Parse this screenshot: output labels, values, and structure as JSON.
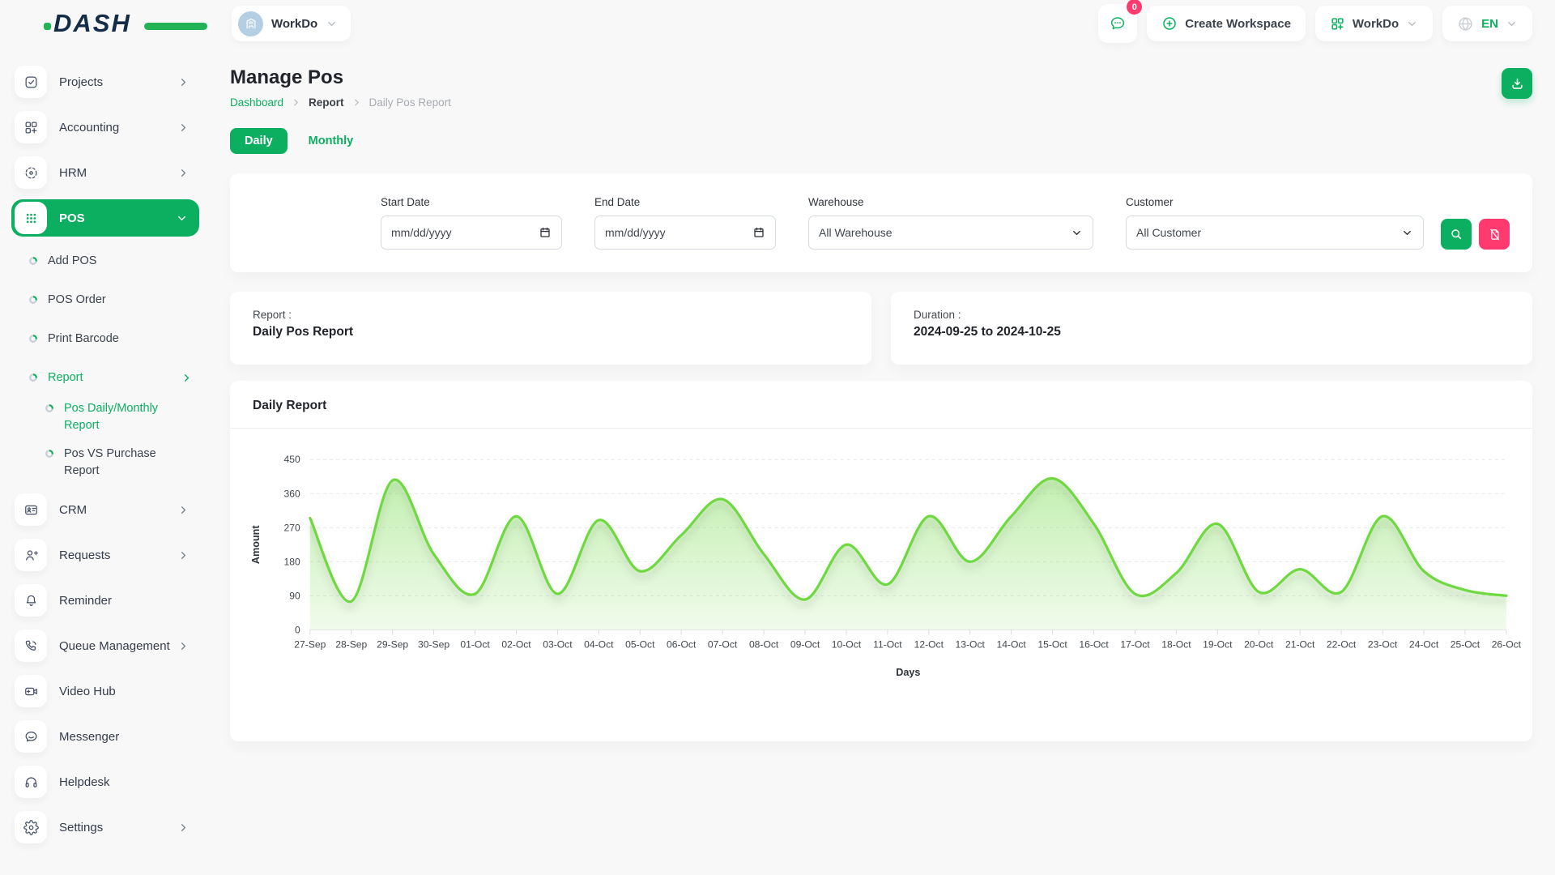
{
  "colors": {
    "primary": "#0caf60",
    "danger": "#ff3a6e",
    "chart_line": "#6fd943",
    "chart_fill": "#6fd943"
  },
  "header": {
    "logo": "DASH",
    "workspace_pill": "WorkDo",
    "workspace_avatar_icon": "building-icon",
    "chat_icon": "chat-bubble-icon",
    "chat_badge": "0",
    "create_workspace": "Create Workspace",
    "create_icon": "plus-circle-icon",
    "workspace_menu": "WorkDo",
    "workspace_menu_icon": "grid-plus-icon",
    "language": "EN",
    "language_icon": "globe-icon"
  },
  "sidebar": {
    "items": [
      {
        "label": "Projects",
        "icon": "checkbox-icon",
        "level": "top",
        "chevron": "right",
        "active": false
      },
      {
        "label": "Accounting",
        "icon": "grid-plus-icon",
        "level": "top",
        "chevron": "right",
        "active": false
      },
      {
        "label": "HRM",
        "icon": "target-dashed-icon",
        "level": "top",
        "chevron": "right",
        "active": false
      },
      {
        "label": "POS",
        "icon": "grid-dots-icon",
        "level": "top",
        "chevron": "down",
        "active": true
      },
      {
        "label": "Add POS",
        "icon": "donut-bullet-icon",
        "level": "sub",
        "chevron": null,
        "active": false
      },
      {
        "label": "POS Order",
        "icon": "donut-bullet-icon",
        "level": "sub",
        "chevron": null,
        "active": false
      },
      {
        "label": "Print Barcode",
        "icon": "donut-bullet-icon",
        "level": "sub",
        "chevron": null,
        "active": false
      },
      {
        "label": "Report",
        "icon": "donut-bullet-icon",
        "level": "sub",
        "chevron": "right",
        "active": true
      },
      {
        "label": "Pos Daily/Monthly Report",
        "icon": "donut-bullet-icon",
        "level": "subsub",
        "chevron": null,
        "active": true
      },
      {
        "label": "Pos VS Purchase Report",
        "icon": "donut-bullet-icon",
        "level": "subsub",
        "chevron": null,
        "active": false
      },
      {
        "label": "CRM",
        "icon": "id-card-icon",
        "level": "top",
        "chevron": "right",
        "active": false
      },
      {
        "label": "Requests",
        "icon": "user-plus-icon",
        "level": "top",
        "chevron": "right",
        "active": false
      },
      {
        "label": "Reminder",
        "icon": "bell-icon",
        "level": "top",
        "chevron": null,
        "active": false
      },
      {
        "label": "Queue Management",
        "icon": "phone-call-icon",
        "level": "top",
        "chevron": "right",
        "active": false
      },
      {
        "label": "Video Hub",
        "icon": "video-camera-icon",
        "level": "top",
        "chevron": null,
        "active": false
      },
      {
        "label": "Messenger",
        "icon": "message-bubble-icon",
        "level": "top",
        "chevron": null,
        "active": false
      },
      {
        "label": "Helpdesk",
        "icon": "headphones-icon",
        "level": "top",
        "chevron": null,
        "active": false
      },
      {
        "label": "Settings",
        "icon": "gear-icon",
        "level": "top",
        "chevron": "right",
        "active": false
      }
    ]
  },
  "page": {
    "title": "Manage Pos",
    "breadcrumb": [
      {
        "label": "Dashboard",
        "style": "link"
      },
      {
        "label": "Report",
        "style": "strong"
      },
      {
        "label": "Daily Pos Report",
        "style": "muted"
      }
    ],
    "download_icon": "download-icon",
    "tabs": [
      {
        "label": "Daily",
        "active": true
      },
      {
        "label": "Monthly",
        "active": false
      }
    ]
  },
  "filters": {
    "start_date": {
      "label": "Start Date",
      "placeholder": "mm/dd/yyyy",
      "icon": "calendar-icon"
    },
    "end_date": {
      "label": "End Date",
      "placeholder": "mm/dd/yyyy",
      "icon": "calendar-icon"
    },
    "warehouse": {
      "label": "Warehouse",
      "value": "All Warehouse",
      "icon": "chevron-down-icon"
    },
    "customer": {
      "label": "Customer",
      "value": "All Customer",
      "icon": "chevron-down-icon"
    },
    "search_icon": "search-icon",
    "reset_icon": "file-off-icon"
  },
  "summary": {
    "report_label": "Report :",
    "report_value": "Daily Pos Report",
    "duration_label": "Duration :",
    "duration_value": "2024-09-25 to 2024-10-25"
  },
  "chart_card": {
    "title": "Daily Report"
  },
  "chart_data": {
    "type": "area",
    "title": "Daily Report",
    "xlabel": "Days",
    "ylabel": "Amount",
    "ylim": [
      0,
      450
    ],
    "yticks": [
      0,
      90,
      180,
      270,
      360,
      450
    ],
    "grid": true,
    "legend": "none",
    "line_color": "#6fd943",
    "categories": [
      "27-Sep",
      "28-Sep",
      "29-Sep",
      "30-Sep",
      "01-Oct",
      "02-Oct",
      "03-Oct",
      "04-Oct",
      "05-Oct",
      "06-Oct",
      "07-Oct",
      "08-Oct",
      "09-Oct",
      "10-Oct",
      "11-Oct",
      "12-Oct",
      "13-Oct",
      "14-Oct",
      "15-Oct",
      "16-Oct",
      "17-Oct",
      "18-Oct",
      "19-Oct",
      "20-Oct",
      "21-Oct",
      "22-Oct",
      "23-Oct",
      "24-Oct",
      "25-Oct",
      "26-Oct"
    ],
    "values": [
      295,
      75,
      395,
      200,
      95,
      300,
      95,
      290,
      155,
      250,
      345,
      200,
      80,
      225,
      120,
      300,
      180,
      300,
      400,
      280,
      95,
      150,
      280,
      100,
      160,
      100,
      300,
      155,
      105,
      90
    ]
  }
}
